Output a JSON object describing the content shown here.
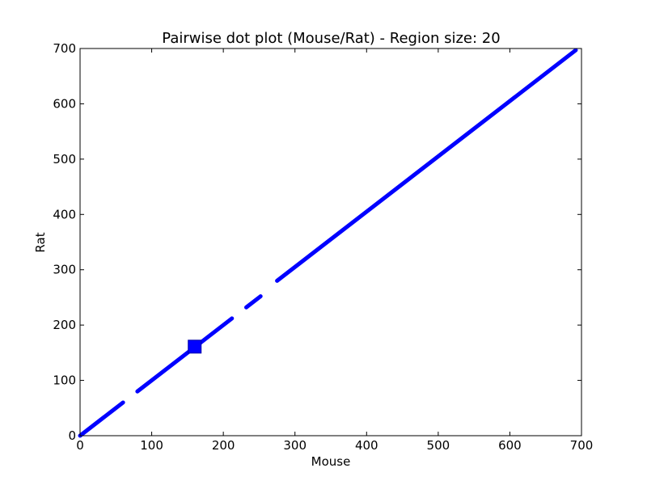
{
  "chart_data": {
    "type": "scatter",
    "title": "Pairwise dot plot (Mouse/Rat) - Region size: 20",
    "xlabel": "Mouse",
    "ylabel": "Rat",
    "xlim": [
      0,
      700
    ],
    "ylim": [
      0,
      700
    ],
    "xticks": [
      0,
      100,
      200,
      300,
      400,
      500,
      600,
      700
    ],
    "yticks": [
      0,
      100,
      200,
      300,
      400,
      500,
      600,
      700
    ],
    "grid": false,
    "series_color": "#0000ff",
    "segments": [
      {
        "x": [
          0,
          60
        ],
        "y": [
          0,
          60
        ]
      },
      {
        "x": [
          80,
          212
        ],
        "y": [
          80,
          212
        ]
      },
      {
        "x": [
          232,
          252
        ],
        "y": [
          232,
          252
        ]
      },
      {
        "x": [
          275,
          692
        ],
        "y": [
          280,
          697
        ]
      }
    ],
    "highlight_point": {
      "x": 160,
      "y": 161,
      "marker": "square"
    }
  }
}
